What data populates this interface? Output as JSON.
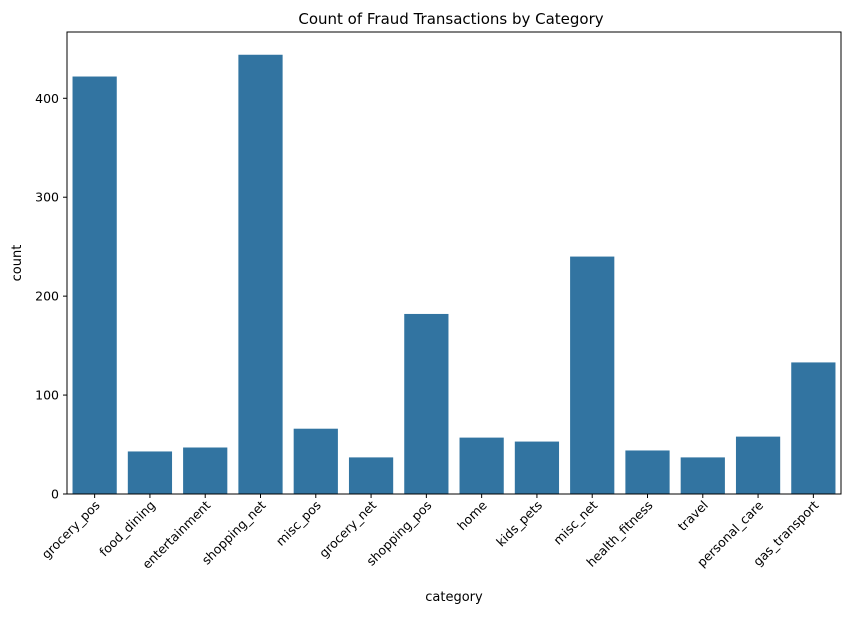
{
  "chart_data": {
    "type": "bar",
    "title": "Count of Fraud Transactions by Category",
    "xlabel": "category",
    "ylabel": "count",
    "categories": [
      "grocery_pos",
      "food_dining",
      "entertainment",
      "shopping_net",
      "misc_pos",
      "grocery_net",
      "shopping_pos",
      "home",
      "kids_pets",
      "misc_net",
      "health_fitness",
      "travel",
      "personal_care",
      "gas_transport"
    ],
    "values": [
      422,
      43,
      47,
      444,
      66,
      37,
      182,
      57,
      53,
      240,
      44,
      37,
      58,
      133
    ],
    "ylim": [
      0,
      467
    ],
    "yticks": [
      0,
      100,
      200,
      300,
      400
    ],
    "grid": false,
    "legend": "none",
    "bar_color": "#3274a1"
  }
}
